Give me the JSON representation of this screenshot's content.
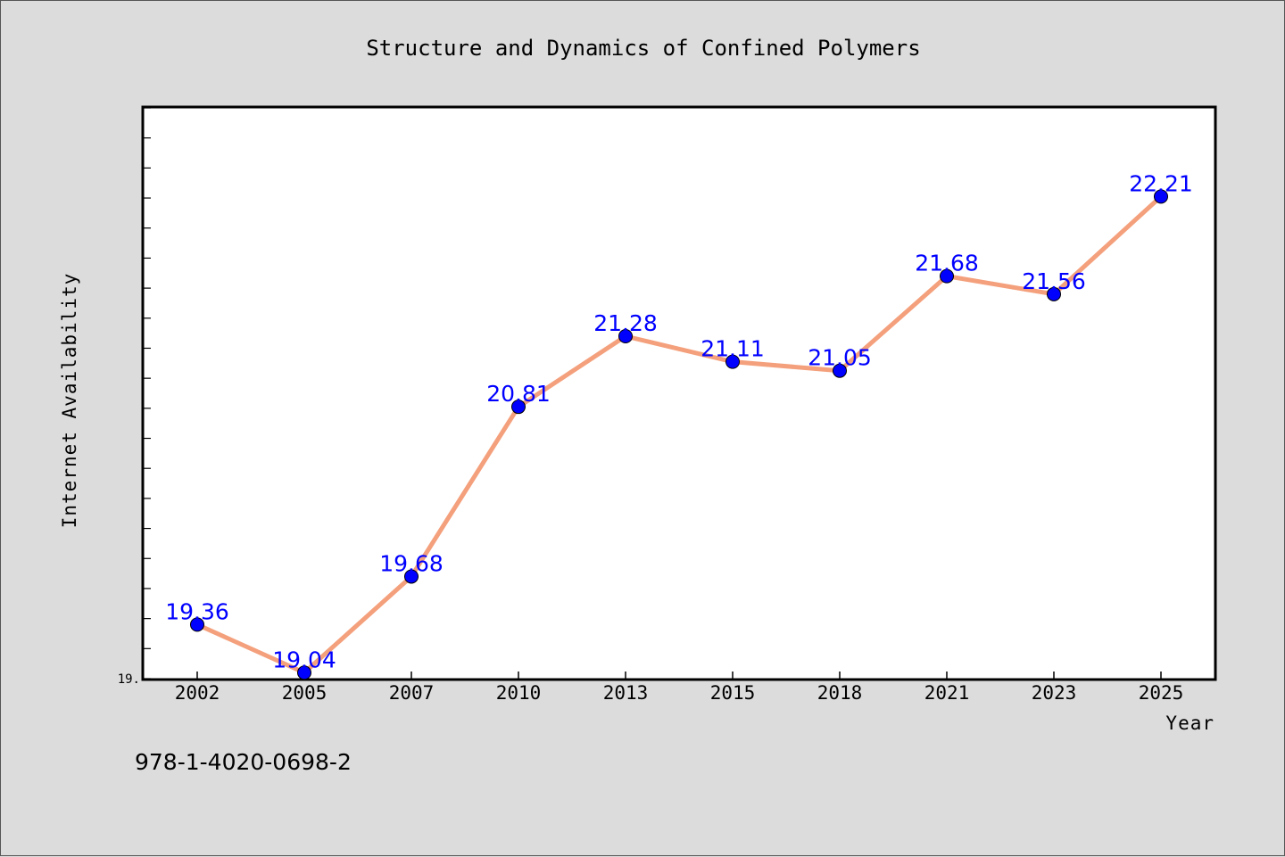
{
  "footer_text": "978-1-4020-0698-2",
  "colors": {
    "background": "#dcdcdc",
    "plot_background": "#ffffff",
    "line": "#f4a07c",
    "marker": "#0000ff",
    "label": "#0000ff"
  },
  "chart_data": {
    "type": "line",
    "title": "Structure and Dynamics of Confined Polymers",
    "xlabel": "Year",
    "ylabel": "Internet Availability",
    "categories": [
      "2002",
      "2005",
      "2007",
      "2010",
      "2013",
      "2015",
      "2018",
      "2021",
      "2023",
      "2025"
    ],
    "series": [
      {
        "values": [
          19.36,
          19.04,
          19.68,
          20.81,
          21.28,
          21.11,
          21.05,
          21.68,
          21.56,
          22.21
        ],
        "data_labels": [
          "19.36",
          "19.04",
          "19.68",
          "20.81",
          "21.28",
          "21.11",
          "21.05",
          "21.68",
          "21.56",
          "22.21"
        ]
      }
    ],
    "ylim": [
      19.0,
      22.8
    ],
    "y_tick_labels": [
      "19."
    ],
    "grid": false,
    "legend": "none"
  }
}
